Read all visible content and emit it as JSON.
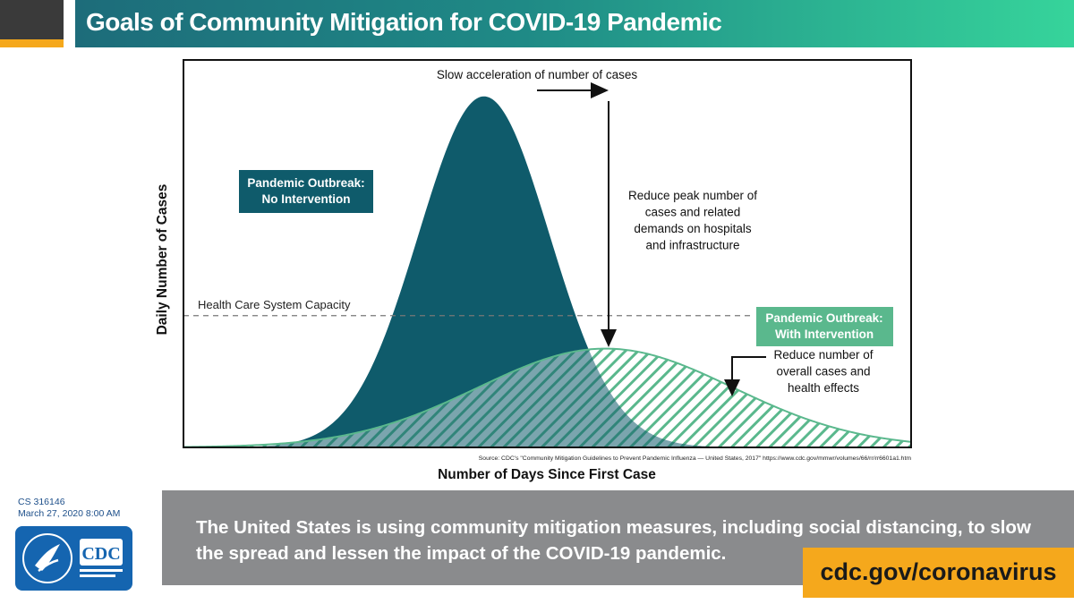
{
  "header": {
    "title": "Goals of Community Mitigation for COVID-19 Pandemic"
  },
  "chart_data": {
    "type": "area",
    "xlabel": "Number of Days Since First Case",
    "ylabel": "Daily Number of Cases",
    "source": "Source: CDC's \"Community Mitigation Guidelines to Prevent Pandemic Influenza — United States, 2017\" https://www.cdc.gov/mmwr/volumes/66/rr/rr6601a1.htm",
    "x_range": [
      0,
      100
    ],
    "y_range": [
      0,
      100
    ],
    "series": [
      {
        "name": "Pandemic Outbreak: No Intervention",
        "peak_x": 41.3,
        "peak_y": 90.6,
        "spread": 9.0,
        "color": "#0f5b6b"
      },
      {
        "name": "Pandemic Outbreak: With Intervention",
        "peak_x": 58.0,
        "peak_y": 25.5,
        "spread": 17.5,
        "color": "#5ab88d"
      }
    ],
    "capacity": {
      "label": "Health Care System Capacity",
      "y": 34.0
    },
    "annotations": {
      "slow": "Slow acceleration of number of cases",
      "peak": [
        "Reduce peak number of",
        "cases and related",
        "demands on hospitals",
        "and infrastructure"
      ],
      "overall": [
        "Reduce number of",
        "overall cases and",
        "health effects"
      ],
      "no_intervention_label": [
        "Pandemic Outbreak:",
        "No Intervention"
      ],
      "with_intervention_label": [
        "Pandemic Outbreak:",
        "With Intervention"
      ]
    }
  },
  "footer": {
    "message": "The United States is using community mitigation measures, including social distancing, to slow the spread and lessen the impact of the COVID-19 pandemic.",
    "url": "cdc.gov/coronavirus",
    "cs_code": "CS 316146",
    "date": "March 27, 2020 8:00 AM",
    "logo_text": "CDC"
  },
  "colors": {
    "teal": "#0f5b6b",
    "green": "#5ab88d",
    "orange": "#f5a81c",
    "gray": "#8a8b8d"
  }
}
